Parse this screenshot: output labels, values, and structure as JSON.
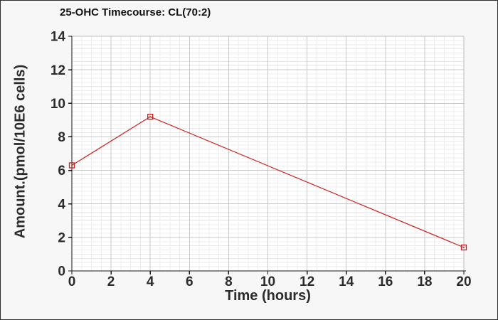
{
  "window": {
    "background": "#f7f7f7",
    "border_color": "#2f2f2f"
  },
  "chart_data": {
    "type": "line",
    "title": "25-OHC Timecourse: CL(70:2)",
    "xlabel": "Time (hours)",
    "ylabel": "Amount.(pmol/10E6 cells)",
    "xlim": [
      0,
      20
    ],
    "ylim": [
      0,
      14
    ],
    "x_ticks": [
      0,
      2,
      4,
      6,
      8,
      10,
      12,
      14,
      16,
      18,
      20
    ],
    "y_ticks": [
      0,
      2,
      4,
      6,
      8,
      10,
      12,
      14
    ],
    "x_minor_step": 0.5,
    "y_minor_step": 0.25,
    "grid": "major+minor",
    "legend": false,
    "series": [
      {
        "x": [
          0,
          4,
          20
        ],
        "y": [
          6.3,
          9.2,
          1.4
        ],
        "color": "#d02020",
        "marker": "open-square-dot"
      }
    ],
    "colors": {
      "plot_bg": "#ffffff",
      "grid_major": "#c8c8c8",
      "grid_minor": "#ececec",
      "axis": "#1a1a1a",
      "tick_text": "#2b2b2b"
    }
  }
}
